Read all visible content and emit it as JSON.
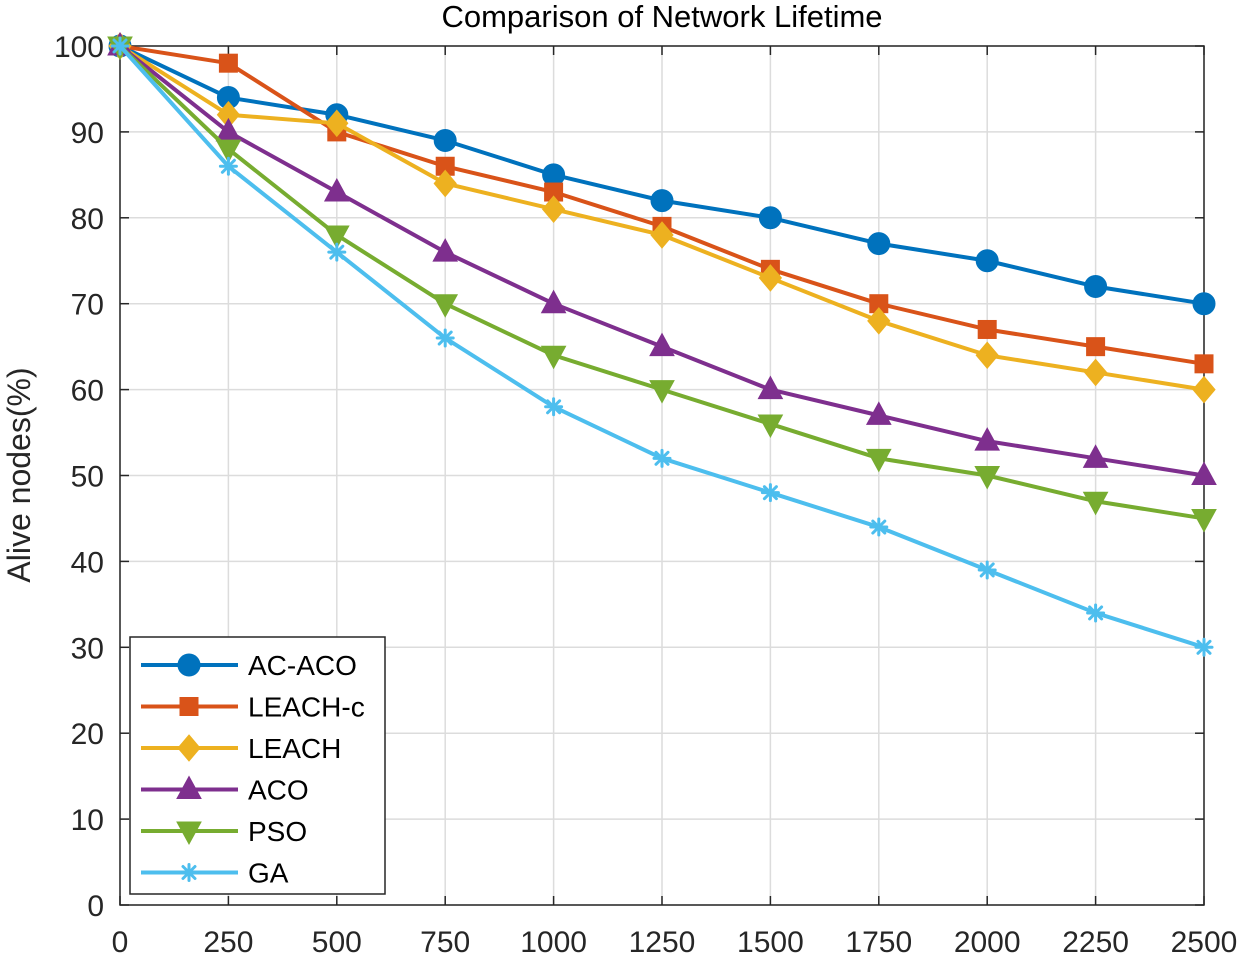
{
  "chart_data": {
    "type": "line",
    "title": "Comparison of Network Lifetime",
    "xlabel": "",
    "ylabel": "Alive nodes(%)",
    "x": [
      0,
      250,
      500,
      750,
      1000,
      1250,
      1500,
      1750,
      2000,
      2250,
      2500
    ],
    "xlim": [
      0,
      2500
    ],
    "ylim": [
      0,
      100
    ],
    "xticks": [
      "0",
      "250",
      "500",
      "750",
      "1000",
      "1250",
      "1500",
      "1750",
      "2000",
      "2250",
      "2500"
    ],
    "yticks": [
      "0",
      "10",
      "20",
      "30",
      "40",
      "50",
      "60",
      "70",
      "80",
      "90",
      "100"
    ],
    "grid": true,
    "legend_position": "bottom-left",
    "series": [
      {
        "name": "AC-ACO",
        "color": "#0072BD",
        "marker": "circle",
        "values": [
          100,
          94,
          92,
          89,
          85,
          82,
          80,
          77,
          75,
          72,
          70
        ]
      },
      {
        "name": "LEACH-c",
        "color": "#D95319",
        "marker": "square",
        "values": [
          100,
          98,
          90,
          86,
          83,
          79,
          74,
          70,
          67,
          65,
          63
        ]
      },
      {
        "name": "LEACH",
        "color": "#EDB120",
        "marker": "diamond",
        "values": [
          100,
          92,
          91,
          84,
          81,
          78,
          73,
          68,
          64,
          62,
          60
        ]
      },
      {
        "name": "ACO",
        "color": "#7E2F8E",
        "marker": "triangle-up",
        "values": [
          100,
          90,
          83,
          76,
          70,
          65,
          60,
          57,
          54,
          52,
          50
        ]
      },
      {
        "name": "PSO",
        "color": "#77AC30",
        "marker": "triangle-down",
        "values": [
          100,
          88,
          78,
          70,
          64,
          60,
          56,
          52,
          50,
          47,
          45
        ]
      },
      {
        "name": "GA",
        "color": "#4DBEEE",
        "marker": "asterisk",
        "values": [
          100,
          86,
          76,
          66,
          58,
          52,
          48,
          44,
          39,
          34,
          30
        ]
      }
    ]
  }
}
